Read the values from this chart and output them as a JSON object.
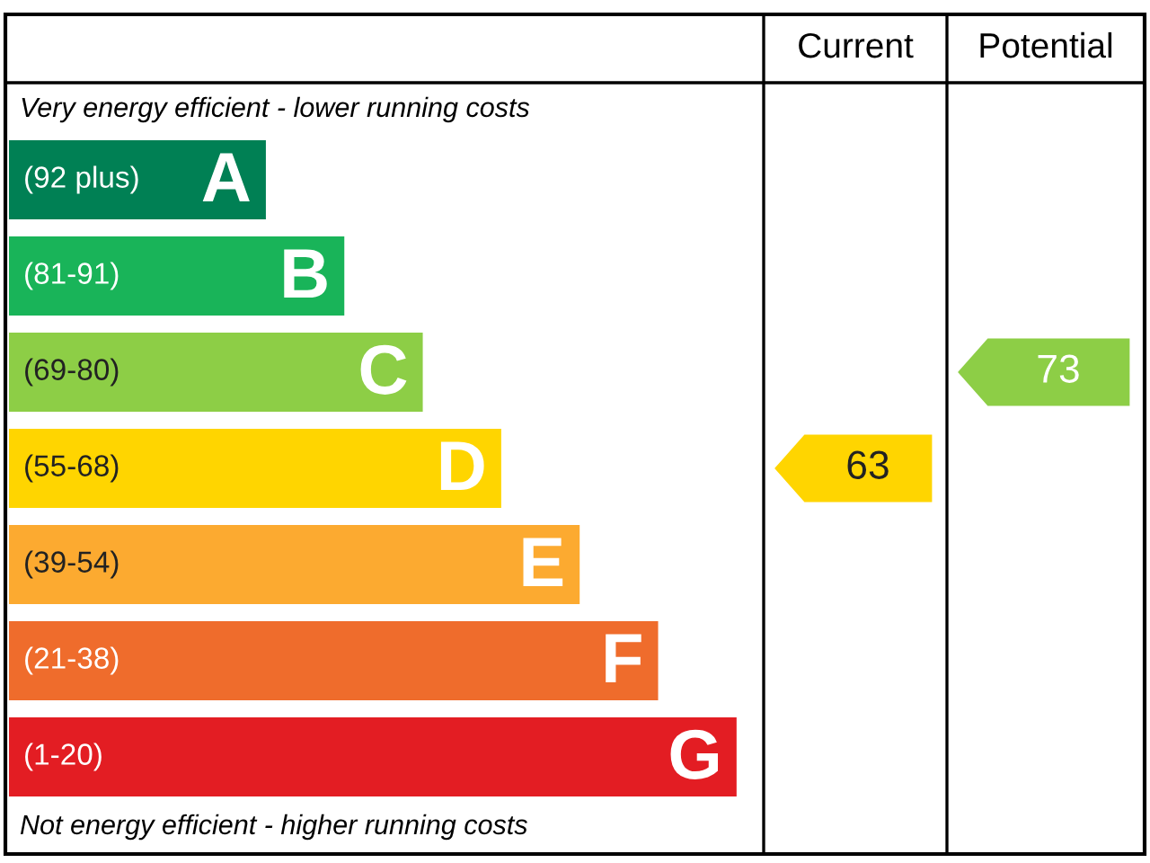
{
  "chart_data": {
    "type": "other",
    "categories": [
      "A",
      "B",
      "C",
      "D",
      "E",
      "F",
      "G"
    ],
    "values": [
      92,
      81,
      69,
      55,
      39,
      21,
      1
    ],
    "value_labels": [
      "(92 plus)",
      "(81-91)",
      "(69-80)",
      "(55-68)",
      "(39-54)",
      "(21-38)",
      "(1-20)"
    ],
    "colors": [
      "#008054",
      "#19b459",
      "#8dce46",
      "#ffd500",
      "#fcaa30",
      "#ef6c2c",
      "#e31d23"
    ],
    "annotations": [
      "Very energy efficient - lower running costs",
      "Not energy efficient - higher running costs",
      "Current",
      "Potential",
      "63",
      "73"
    ]
  }
}
